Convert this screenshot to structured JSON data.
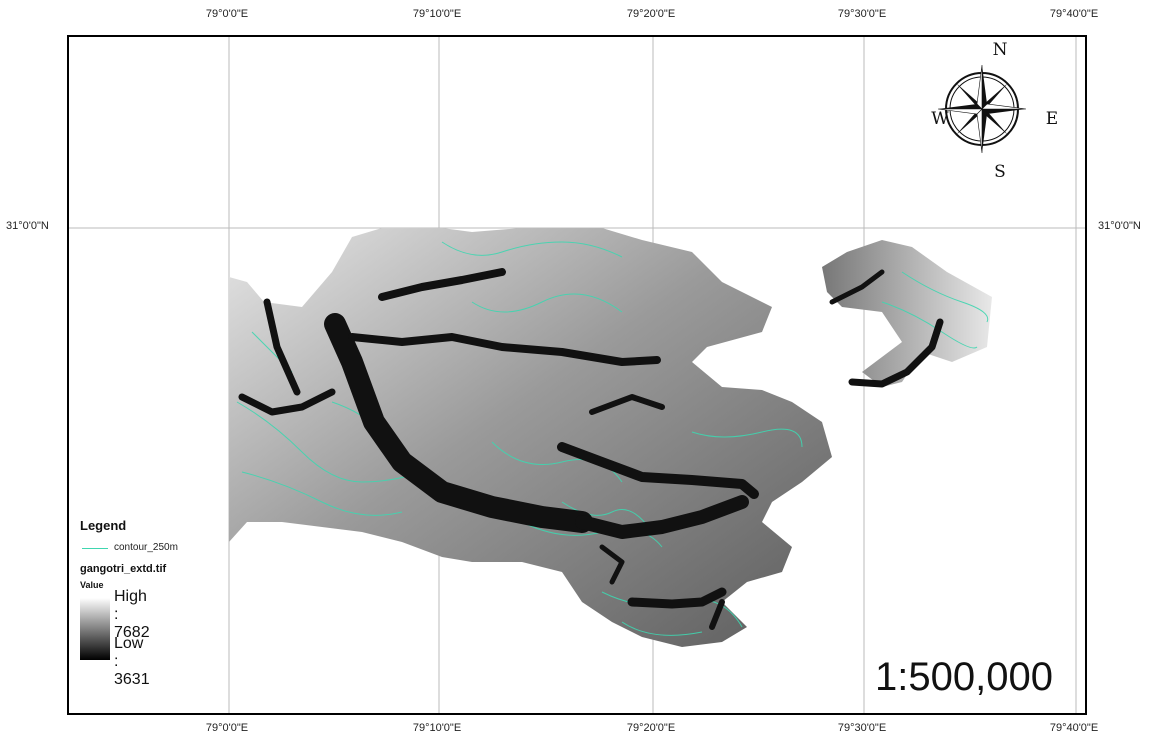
{
  "map": {
    "graticule": {
      "longitude_labels": [
        "79°0'0\"E",
        "79°10'0\"E",
        "79°20'0\"E",
        "79°30'0\"E",
        "79°40'0\"E"
      ],
      "latitude_labels": [
        "31°0'0\"N"
      ]
    },
    "compass": {
      "north": "N",
      "south": "S",
      "east": "E",
      "west": "W"
    },
    "scale": "1:500,000"
  },
  "legend": {
    "title": "Legend",
    "contour_label": "contour_250m",
    "raster_name": "gangotri_extd.tif",
    "value_label": "Value",
    "high_label": "High : 7682",
    "low_label": "Low : 3631",
    "high_value": 7682,
    "low_value": 3631
  },
  "colors": {
    "contour": "#3fd6b0",
    "glacier": "#111111",
    "frame": "#000000",
    "grid": "#bbbbbb"
  }
}
